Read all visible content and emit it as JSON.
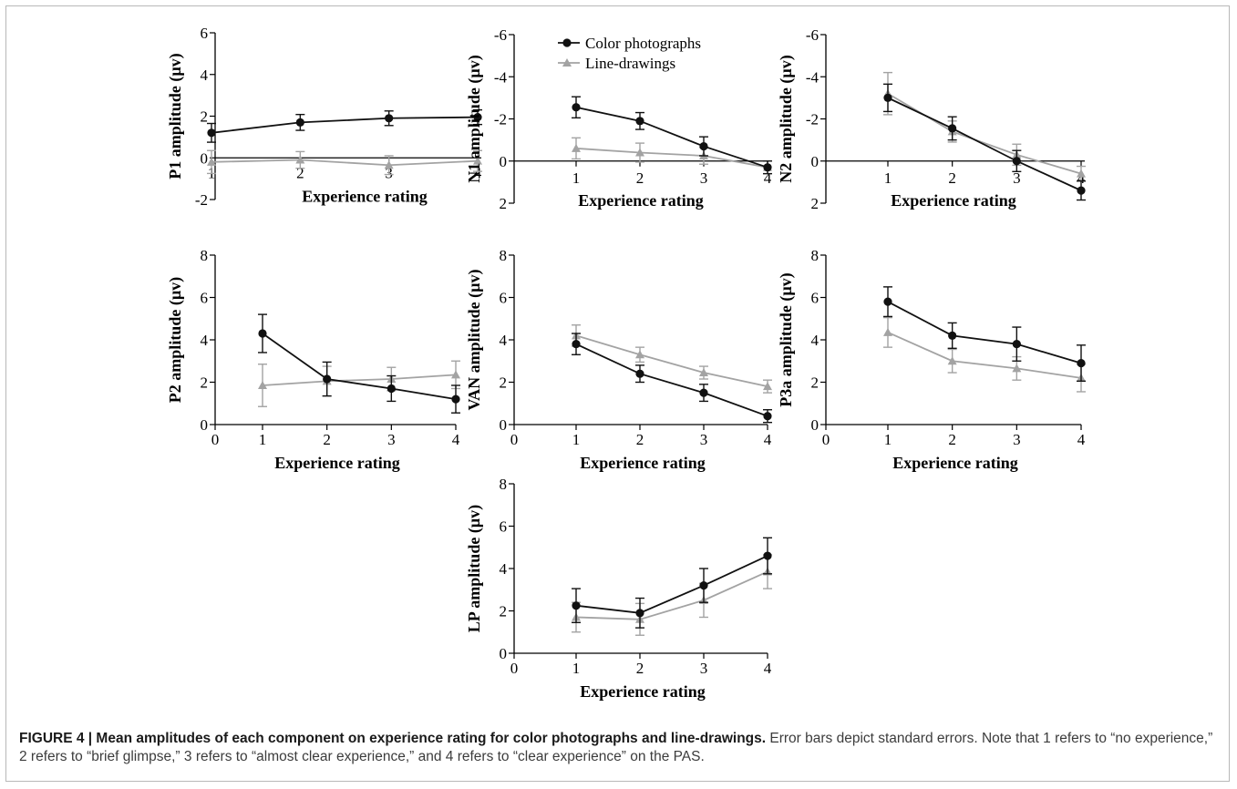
{
  "caption": {
    "label": "FIGURE 4 | Mean amplitudes of each component on experience rating for color photographs and line-drawings.",
    "text": " Error bars depict standard errors. Note that 1 refers to “no experience,” 2 refers to “brief glimpse,” 3 refers to “almost clear experience,” and 4 refers to “clear experience” on the PAS."
  },
  "legend": {
    "placement": "top-center",
    "entries": [
      "Color photographs",
      "Line-drawings"
    ]
  },
  "colors": {
    "color_photographs": "#111111",
    "line_drawings": "#a3a3a3"
  },
  "chart_data": [
    {
      "type": "line",
      "panel": "P1",
      "ylabel": "P1 amplitude (µv)",
      "xlabel": "Experience rating",
      "categories": [
        1,
        2,
        3,
        4
      ],
      "ylim": [
        -2,
        6
      ],
      "inverted": false,
      "yticks": [
        "-2",
        "0",
        "2",
        "4",
        "6"
      ],
      "show_x_zero": false,
      "series": [
        {
          "name": "Color photographs",
          "values": [
            1.2,
            1.7,
            1.9,
            1.95
          ],
          "se": [
            0.45,
            0.38,
            0.35,
            0.35
          ]
        },
        {
          "name": "Line-drawings",
          "values": [
            -0.2,
            -0.1,
            -0.35,
            -0.15
          ],
          "se": [
            0.55,
            0.4,
            0.45,
            0.5
          ]
        }
      ]
    },
    {
      "type": "line",
      "panel": "N1",
      "ylabel": "N1 amplitude (µv)",
      "xlabel": "Experience rating",
      "categories": [
        1,
        2,
        3,
        4
      ],
      "ylim": [
        2,
        -6
      ],
      "inverted": true,
      "yticks": [
        "2",
        "0",
        "-2",
        "-4",
        "-6"
      ],
      "show_x_zero": false,
      "series": [
        {
          "name": "Color photographs",
          "values": [
            -2.55,
            -1.9,
            -0.7,
            0.3
          ],
          "se": [
            0.5,
            0.4,
            0.45,
            0.3
          ]
        },
        {
          "name": "Line-drawings",
          "values": [
            -0.6,
            -0.4,
            -0.25,
            0.3
          ],
          "se": [
            0.5,
            0.45,
            0.4,
            0.3
          ]
        }
      ]
    },
    {
      "type": "line",
      "panel": "N2",
      "ylabel": "N2 amplitude (µv)",
      "xlabel": "Experience rating",
      "categories": [
        1,
        2,
        3,
        4
      ],
      "ylim": [
        2,
        -6
      ],
      "inverted": true,
      "yticks": [
        "2",
        "0",
        "-2",
        "-4",
        "-6"
      ],
      "show_x_zero": false,
      "series": [
        {
          "name": "Color photographs",
          "values": [
            -3.0,
            -1.55,
            0.0,
            1.4
          ],
          "se": [
            0.65,
            0.55,
            0.5,
            0.45
          ]
        },
        {
          "name": "Line-drawings",
          "values": [
            -3.2,
            -1.4,
            -0.3,
            0.6
          ],
          "se": [
            1.0,
            0.5,
            0.5,
            0.35
          ]
        }
      ]
    },
    {
      "type": "line",
      "panel": "P2",
      "ylabel": "P2 amplitude (µv)",
      "xlabel": "Experience rating",
      "categories": [
        1,
        2,
        3,
        4
      ],
      "xlim": [
        0,
        4
      ],
      "ylim": [
        0,
        8
      ],
      "inverted": false,
      "yticks": [
        "0",
        "2",
        "4",
        "6",
        "8"
      ],
      "show_x_zero": true,
      "series": [
        {
          "name": "Color photographs",
          "values": [
            4.3,
            2.15,
            1.7,
            1.2
          ],
          "se": [
            0.9,
            0.8,
            0.6,
            0.65
          ]
        },
        {
          "name": "Line-drawings",
          "values": [
            1.85,
            2.05,
            2.15,
            2.35
          ],
          "se": [
            1.0,
            0.7,
            0.55,
            0.65
          ]
        }
      ]
    },
    {
      "type": "line",
      "panel": "VAN",
      "ylabel": "VAN amplitude (µv)",
      "xlabel": "Experience rating",
      "categories": [
        1,
        2,
        3,
        4
      ],
      "xlim": [
        0,
        4
      ],
      "ylim": [
        0,
        8
      ],
      "inverted": false,
      "yticks": [
        "0",
        "2",
        "4",
        "6",
        "8"
      ],
      "show_x_zero": true,
      "series": [
        {
          "name": "Color photographs",
          "values": [
            3.8,
            2.4,
            1.5,
            0.4
          ],
          "se": [
            0.5,
            0.4,
            0.4,
            0.3
          ]
        },
        {
          "name": "Line-drawings",
          "values": [
            4.2,
            3.3,
            2.45,
            1.8
          ],
          "se": [
            0.5,
            0.35,
            0.3,
            0.3
          ]
        }
      ]
    },
    {
      "type": "line",
      "panel": "P3a",
      "ylabel": "P3a amplitude (µv)",
      "xlabel": "Experience rating",
      "categories": [
        1,
        2,
        3,
        4
      ],
      "xlim": [
        0,
        4
      ],
      "ylim": [
        0,
        8
      ],
      "inverted": false,
      "yticks": [
        "0",
        "2",
        "4",
        "6",
        "8"
      ],
      "show_x_zero": true,
      "series": [
        {
          "name": "Color photographs",
          "values": [
            5.8,
            4.2,
            3.8,
            2.9
          ],
          "se": [
            0.7,
            0.6,
            0.8,
            0.85
          ]
        },
        {
          "name": "Line-drawings",
          "values": [
            4.35,
            3.0,
            2.65,
            2.2
          ],
          "se": [
            0.7,
            0.55,
            0.55,
            0.65
          ]
        }
      ]
    },
    {
      "type": "line",
      "panel": "LP",
      "ylabel": "LP amplitude (µv)",
      "xlabel": "Experience rating",
      "categories": [
        1,
        2,
        3,
        4
      ],
      "xlim": [
        0,
        4
      ],
      "ylim": [
        0,
        8
      ],
      "inverted": false,
      "yticks": [
        "0",
        "2",
        "4",
        "6",
        "8"
      ],
      "show_x_zero": true,
      "series": [
        {
          "name": "Color photographs",
          "values": [
            2.25,
            1.9,
            3.2,
            4.6
          ],
          "se": [
            0.8,
            0.7,
            0.8,
            0.85
          ]
        },
        {
          "name": "Line-drawings",
          "values": [
            1.7,
            1.6,
            2.5,
            3.85
          ],
          "se": [
            0.7,
            0.75,
            0.8,
            0.8
          ]
        }
      ]
    }
  ]
}
